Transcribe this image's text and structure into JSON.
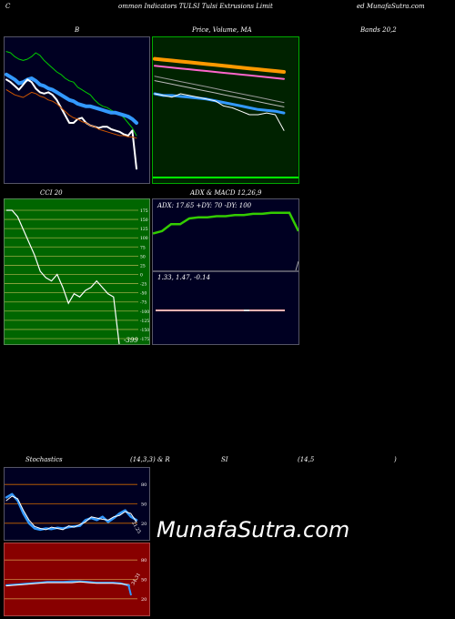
{
  "header": {
    "left_c": "C",
    "title": "ommon  Indicators TULSI Tulsi  Extrusions Limit",
    "right": "ed MunafaSutra.com"
  },
  "labels": {
    "b": "B",
    "price": "Price,  Volume,  MA",
    "bands": "Bands 20,2",
    "cci": "CCI 20",
    "adx_macd": "ADX  & MACD 12,26,9",
    "stochastics": "Stochastics",
    "stoch_params": "(14,3,3) & R",
    "si": "SI",
    "rsi_params": "(14,5",
    "rsi_close": ")"
  },
  "watermark": "MunafaSutra.com",
  "colors": {
    "navy_bg": "#000022",
    "green_bg": "#002200",
    "olive_bg": "#006600",
    "red_bg": "#880000",
    "blue": "#3399ff",
    "orange": "#ff9900",
    "lime": "#33cc00"
  },
  "chart_data": [
    {
      "type": "line",
      "name": "bollinger",
      "series": [
        {
          "color": "#00cc00",
          "values": [
            96,
            95,
            92,
            90,
            89,
            90,
            92,
            95,
            93,
            89,
            86,
            83,
            80,
            78,
            75,
            73,
            72,
            68,
            66,
            64,
            62,
            58,
            55,
            53,
            52,
            50,
            48,
            47,
            44,
            40,
            36,
            30
          ]
        },
        {
          "color": "#3399ff",
          "values": [
            78,
            76,
            74,
            71,
            72,
            74,
            75,
            73,
            70,
            69,
            67,
            66,
            64,
            62,
            60,
            58,
            57,
            55,
            54,
            53,
            53,
            52,
            51,
            50,
            49,
            48,
            48,
            47,
            46,
            45,
            43,
            40
          ]
        },
        {
          "color": "#ffffff",
          "values": [
            74,
            72,
            69,
            66,
            70,
            74,
            72,
            67,
            64,
            63,
            64,
            62,
            58,
            52,
            46,
            40,
            40,
            43,
            44,
            40,
            38,
            37,
            36,
            37,
            37,
            35,
            34,
            33,
            31,
            30,
            34,
            4
          ]
        },
        {
          "color": "#cc5500",
          "values": [
            66,
            64,
            62,
            61,
            60,
            62,
            64,
            63,
            61,
            60,
            58,
            57,
            55,
            52,
            49,
            46,
            44,
            43,
            41,
            40,
            38,
            37,
            35,
            34,
            33,
            32,
            31,
            30,
            30,
            29,
            29,
            28
          ]
        }
      ],
      "ylim": [
        0,
        100
      ]
    },
    {
      "type": "line",
      "name": "price_volume_ma",
      "series": [
        {
          "color": "#ff9900",
          "values": [
            90,
            89,
            88,
            87,
            86,
            85,
            84,
            83,
            82,
            81,
            80,
            79,
            78,
            77,
            76,
            75
          ]
        },
        {
          "color": "#ff66cc",
          "values": [
            82,
            81,
            80,
            79,
            78,
            77,
            76,
            75,
            74,
            73,
            72,
            71,
            70,
            69,
            68,
            67
          ]
        },
        {
          "color": "#999999",
          "values": [
            70,
            68,
            66,
            64,
            62,
            60,
            58,
            56,
            54,
            52,
            50,
            48,
            46,
            44,
            42,
            40
          ]
        },
        {
          "color": "#3399ff",
          "values": [
            50,
            48,
            48,
            47,
            46,
            45,
            44,
            42,
            40,
            38,
            36,
            34,
            32,
            31,
            30,
            28
          ]
        },
        {
          "color": "#ffffff",
          "values": [
            50,
            48,
            46,
            50,
            48,
            46,
            44,
            42,
            36,
            34,
            30,
            26,
            26,
            28,
            26,
            8
          ]
        }
      ],
      "ylim": [
        0,
        100
      ]
    },
    {
      "type": "line",
      "name": "cci",
      "ticks": [
        "175",
        "150",
        "125",
        "100",
        "75",
        "50",
        "25",
        "0",
        "-25",
        "-50",
        "-75",
        "-100",
        "-125",
        "-150",
        "-175"
      ],
      "values": [
        200,
        200,
        180,
        140,
        100,
        60,
        10,
        -10,
        -20,
        0,
        -40,
        -90,
        -60,
        -70,
        -50,
        -40,
        -20,
        -40,
        -60,
        -70,
        -399
      ],
      "last_label": "-399",
      "ylim": [
        -200,
        200
      ]
    },
    {
      "type": "line",
      "name": "adx",
      "text": "ADX: 17.65  +DY: 70  -DY: 100",
      "values": [
        32,
        34,
        40,
        40,
        45,
        46,
        46,
        47,
        47,
        48,
        48,
        49,
        49,
        50,
        50,
        50,
        34
      ],
      "ylim": [
        0,
        60
      ]
    },
    {
      "type": "line",
      "name": "macd",
      "text": "1.33,  1.47,  -0.14",
      "values": [
        -0.14,
        -0.14
      ],
      "ylim": [
        -1,
        1
      ]
    },
    {
      "type": "line",
      "name": "stochastics",
      "ticks": [
        "80",
        "50",
        "20"
      ],
      "series": [
        {
          "color": "#3399ff",
          "values": [
            60,
            65,
            55,
            35,
            20,
            12,
            10,
            12,
            11,
            13,
            12,
            14,
            15,
            16,
            25,
            28,
            25,
            30,
            22,
            28,
            35,
            40,
            30,
            25
          ]
        },
        {
          "color": "#ffffff",
          "values": [
            55,
            62,
            58,
            40,
            25,
            15,
            12,
            10,
            14,
            12,
            10,
            16,
            14,
            18,
            22,
            30,
            28,
            26,
            25,
            30,
            32,
            38,
            35,
            22
          ]
        }
      ],
      "last_label": "21.25",
      "ylim": [
        0,
        100
      ]
    },
    {
      "type": "line",
      "name": "rsi",
      "ticks": [
        "80",
        "50",
        "20"
      ],
      "series": [
        {
          "color": "#3399ff",
          "values": [
            41,
            42,
            43,
            44,
            45,
            46,
            46,
            46,
            47,
            47,
            46,
            45,
            45,
            45,
            44,
            40
          ]
        },
        {
          "color": "#ffffff",
          "values": [
            40,
            41,
            42,
            43,
            44,
            45,
            45,
            45,
            45,
            46,
            45,
            44,
            44,
            44,
            43,
            42
          ]
        }
      ],
      "last_label": "34.31",
      "ylim": [
        0,
        100
      ]
    }
  ]
}
